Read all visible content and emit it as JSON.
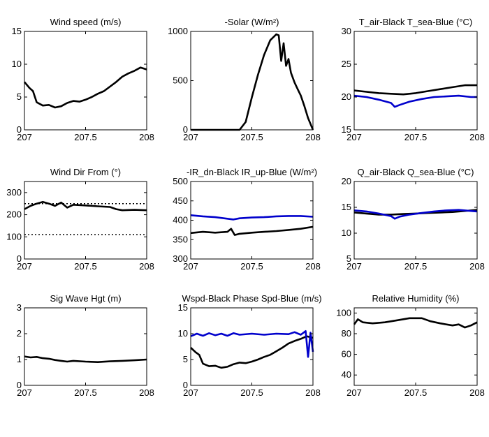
{
  "figure": {
    "x_ticks": [
      "207",
      "207.5",
      "208"
    ]
  },
  "chart_data": [
    {
      "type": "line",
      "title": "Wind speed (m/s)",
      "xlim": [
        207,
        208
      ],
      "ylim": [
        0,
        15
      ],
      "x_tick_labels": [
        "207",
        "207.5",
        "208"
      ],
      "y_tick_labels": [
        "0",
        "5",
        "10",
        "15"
      ],
      "series": [
        {
          "color": "#000000",
          "points": [
            [
              207,
              7.3
            ],
            [
              207.04,
              6.4
            ],
            [
              207.07,
              5.9
            ],
            [
              207.1,
              4.2
            ],
            [
              207.15,
              3.7
            ],
            [
              207.2,
              3.8
            ],
            [
              207.25,
              3.4
            ],
            [
              207.3,
              3.6
            ],
            [
              207.35,
              4.1
            ],
            [
              207.4,
              4.4
            ],
            [
              207.45,
              4.3
            ],
            [
              207.5,
              4.6
            ],
            [
              207.55,
              5.0
            ],
            [
              207.6,
              5.5
            ],
            [
              207.65,
              5.9
            ],
            [
              207.7,
              6.6
            ],
            [
              207.75,
              7.3
            ],
            [
              207.8,
              8.1
            ],
            [
              207.85,
              8.6
            ],
            [
              207.9,
              9.0
            ],
            [
              207.95,
              9.5
            ],
            [
              208,
              9.2
            ]
          ]
        }
      ]
    },
    {
      "type": "line",
      "title": "-Solar (W/m²)",
      "xlim": [
        207,
        208
      ],
      "ylim": [
        0,
        1000
      ],
      "x_tick_labels": [
        "207",
        "207.5",
        "208"
      ],
      "y_tick_labels": [
        "0",
        "500",
        "1000"
      ],
      "series": [
        {
          "color": "#000000",
          "points": [
            [
              207,
              0
            ],
            [
              207.35,
              0
            ],
            [
              207.4,
              0
            ],
            [
              207.45,
              80
            ],
            [
              207.5,
              330
            ],
            [
              207.55,
              560
            ],
            [
              207.6,
              760
            ],
            [
              207.65,
              910
            ],
            [
              207.7,
              970
            ],
            [
              207.72,
              960
            ],
            [
              207.74,
              700
            ],
            [
              207.76,
              880
            ],
            [
              207.78,
              650
            ],
            [
              207.8,
              720
            ],
            [
              207.82,
              580
            ],
            [
              207.85,
              480
            ],
            [
              207.88,
              400
            ],
            [
              207.9,
              350
            ],
            [
              207.93,
              240
            ],
            [
              207.96,
              120
            ],
            [
              208,
              0
            ]
          ]
        }
      ]
    },
    {
      "type": "line",
      "title": "T_air-Black  T_sea-Blue (°C)",
      "xlim": [
        207,
        208
      ],
      "ylim": [
        15,
        30
      ],
      "x_tick_labels": [
        "207",
        "207.5",
        "208"
      ],
      "y_tick_labels": [
        "15",
        "20",
        "25",
        "30"
      ],
      "series": [
        {
          "color": "#000000",
          "points": [
            [
              207,
              21.0
            ],
            [
              207.1,
              20.8
            ],
            [
              207.2,
              20.6
            ],
            [
              207.3,
              20.5
            ],
            [
              207.4,
              20.4
            ],
            [
              207.5,
              20.6
            ],
            [
              207.6,
              20.9
            ],
            [
              207.7,
              21.2
            ],
            [
              207.8,
              21.5
            ],
            [
              207.9,
              21.8
            ],
            [
              208,
              21.8
            ]
          ]
        },
        {
          "color": "#0000cc",
          "points": [
            [
              207,
              20.2
            ],
            [
              207.1,
              20.0
            ],
            [
              207.2,
              19.6
            ],
            [
              207.3,
              19.1
            ],
            [
              207.33,
              18.5
            ],
            [
              207.37,
              18.8
            ],
            [
              207.45,
              19.3
            ],
            [
              207.55,
              19.7
            ],
            [
              207.65,
              20.0
            ],
            [
              207.75,
              20.1
            ],
            [
              207.85,
              20.2
            ],
            [
              207.95,
              20.0
            ],
            [
              208,
              20.0
            ]
          ]
        }
      ]
    },
    {
      "type": "line",
      "title": "Wind Dir From (°)",
      "xlim": [
        207,
        208
      ],
      "ylim": [
        0,
        350
      ],
      "x_tick_labels": [
        "207",
        "207.5",
        "208"
      ],
      "y_tick_labels": [
        "0",
        "100",
        "200",
        "300"
      ],
      "reference_lines": [
        250,
        110
      ],
      "series": [
        {
          "color": "#000000",
          "points": [
            [
              207,
              225
            ],
            [
              207.05,
              240
            ],
            [
              207.1,
              250
            ],
            [
              207.15,
              258
            ],
            [
              207.2,
              250
            ],
            [
              207.25,
              240
            ],
            [
              207.3,
              255
            ],
            [
              207.35,
              232
            ],
            [
              207.4,
              245
            ],
            [
              207.5,
              242
            ],
            [
              207.6,
              238
            ],
            [
              207.7,
              235
            ],
            [
              207.75,
              225
            ],
            [
              207.8,
              220
            ],
            [
              207.9,
              222
            ],
            [
              208,
              220
            ]
          ]
        }
      ]
    },
    {
      "type": "line",
      "title": "-IR_dn-Black  IR_up-Blue (W/m²)",
      "xlim": [
        207,
        208
      ],
      "ylim": [
        300,
        500
      ],
      "x_tick_labels": [
        "207",
        "207.5",
        "208"
      ],
      "y_tick_labels": [
        "300",
        "350",
        "400",
        "450",
        "500"
      ],
      "series": [
        {
          "color": "#000000",
          "points": [
            [
              207,
              367
            ],
            [
              207.1,
              370
            ],
            [
              207.2,
              368
            ],
            [
              207.3,
              370
            ],
            [
              207.33,
              378
            ],
            [
              207.36,
              362
            ],
            [
              207.4,
              365
            ],
            [
              207.5,
              368
            ],
            [
              207.6,
              370
            ],
            [
              207.7,
              372
            ],
            [
              207.8,
              375
            ],
            [
              207.9,
              378
            ],
            [
              208,
              383
            ]
          ]
        },
        {
          "color": "#0000cc",
          "points": [
            [
              207,
              413
            ],
            [
              207.1,
              410
            ],
            [
              207.2,
              408
            ],
            [
              207.3,
              404
            ],
            [
              207.35,
              402
            ],
            [
              207.4,
              405
            ],
            [
              207.5,
              407
            ],
            [
              207.6,
              408
            ],
            [
              207.7,
              410
            ],
            [
              207.8,
              411
            ],
            [
              207.9,
              411
            ],
            [
              208,
              409
            ]
          ]
        }
      ]
    },
    {
      "type": "line",
      "title": "Q_air-Black  Q_sea-Blue (°C)",
      "xlim": [
        207,
        208
      ],
      "ylim": [
        5,
        20
      ],
      "x_tick_labels": [
        "207",
        "207.5",
        "208"
      ],
      "y_tick_labels": [
        "5",
        "10",
        "15",
        "20"
      ],
      "series": [
        {
          "color": "#000000",
          "points": [
            [
              207,
              14.0
            ],
            [
              207.1,
              13.8
            ],
            [
              207.2,
              13.6
            ],
            [
              207.3,
              13.6
            ],
            [
              207.4,
              13.7
            ],
            [
              207.5,
              13.8
            ],
            [
              207.6,
              13.9
            ],
            [
              207.7,
              14.0
            ],
            [
              207.8,
              14.1
            ],
            [
              207.9,
              14.3
            ],
            [
              208,
              14.5
            ]
          ]
        },
        {
          "color": "#0000cc",
          "points": [
            [
              207,
              14.4
            ],
            [
              207.1,
              14.2
            ],
            [
              207.2,
              13.8
            ],
            [
              207.3,
              13.3
            ],
            [
              207.33,
              12.8
            ],
            [
              207.37,
              13.2
            ],
            [
              207.45,
              13.6
            ],
            [
              207.55,
              13.9
            ],
            [
              207.65,
              14.2
            ],
            [
              207.75,
              14.4
            ],
            [
              207.85,
              14.5
            ],
            [
              207.95,
              14.3
            ],
            [
              208,
              14.2
            ]
          ]
        }
      ]
    },
    {
      "type": "line",
      "title": "Sig Wave Hgt (m)",
      "xlim": [
        207,
        208
      ],
      "ylim": [
        0,
        3
      ],
      "x_tick_labels": [
        "207",
        "207.5",
        "208"
      ],
      "y_tick_labels": [
        "0",
        "1",
        "2",
        "3"
      ],
      "series": [
        {
          "color": "#000000",
          "points": [
            [
              207,
              1.12
            ],
            [
              207.05,
              1.08
            ],
            [
              207.1,
              1.1
            ],
            [
              207.15,
              1.05
            ],
            [
              207.2,
              1.03
            ],
            [
              207.25,
              0.98
            ],
            [
              207.3,
              0.95
            ],
            [
              207.35,
              0.92
            ],
            [
              207.4,
              0.95
            ],
            [
              207.5,
              0.92
            ],
            [
              207.6,
              0.9
            ],
            [
              207.7,
              0.93
            ],
            [
              207.8,
              0.95
            ],
            [
              207.9,
              0.97
            ],
            [
              208,
              1.0
            ]
          ]
        }
      ]
    },
    {
      "type": "line",
      "title": "Wspd-Black  Phase Spd-Blue (m/s)",
      "xlim": [
        207,
        208
      ],
      "ylim": [
        0,
        15
      ],
      "x_tick_labels": [
        "207",
        "207.5",
        "208"
      ],
      "y_tick_labels": [
        "0",
        "5",
        "10",
        "15"
      ],
      "series": [
        {
          "color": "#000000",
          "points": [
            [
              207,
              7.3
            ],
            [
              207.04,
              6.4
            ],
            [
              207.07,
              5.9
            ],
            [
              207.1,
              4.2
            ],
            [
              207.15,
              3.7
            ],
            [
              207.2,
              3.8
            ],
            [
              207.25,
              3.4
            ],
            [
              207.3,
              3.6
            ],
            [
              207.35,
              4.1
            ],
            [
              207.4,
              4.4
            ],
            [
              207.45,
              4.3
            ],
            [
              207.5,
              4.6
            ],
            [
              207.55,
              5.0
            ],
            [
              207.6,
              5.5
            ],
            [
              207.65,
              5.9
            ],
            [
              207.7,
              6.6
            ],
            [
              207.75,
              7.3
            ],
            [
              207.8,
              8.1
            ],
            [
              207.85,
              8.6
            ],
            [
              207.9,
              9.0
            ],
            [
              207.95,
              9.5
            ],
            [
              208,
              9.2
            ]
          ]
        },
        {
          "color": "#0000cc",
          "points": [
            [
              207,
              9.5
            ],
            [
              207.05,
              10.0
            ],
            [
              207.1,
              9.6
            ],
            [
              207.15,
              10.1
            ],
            [
              207.2,
              9.7
            ],
            [
              207.25,
              10.0
            ],
            [
              207.3,
              9.6
            ],
            [
              207.35,
              10.1
            ],
            [
              207.4,
              9.8
            ],
            [
              207.5,
              10.0
            ],
            [
              207.6,
              9.8
            ],
            [
              207.7,
              10.0
            ],
            [
              207.8,
              9.9
            ],
            [
              207.85,
              10.3
            ],
            [
              207.9,
              9.8
            ],
            [
              207.94,
              10.5
            ],
            [
              207.96,
              5.5
            ],
            [
              207.98,
              10.2
            ],
            [
              208,
              6.5
            ]
          ]
        }
      ]
    },
    {
      "type": "line",
      "title": "Relative Humidity (%)",
      "xlim": [
        207,
        208
      ],
      "ylim": [
        30,
        105
      ],
      "x_tick_labels": [
        "207",
        "207.5",
        "208"
      ],
      "y_tick_labels": [
        "40",
        "60",
        "80",
        "100"
      ],
      "series": [
        {
          "color": "#000000",
          "points": [
            [
              207,
              89
            ],
            [
              207.03,
              94
            ],
            [
              207.07,
              91
            ],
            [
              207.15,
              90
            ],
            [
              207.25,
              91
            ],
            [
              207.35,
              93
            ],
            [
              207.45,
              95
            ],
            [
              207.55,
              95
            ],
            [
              207.62,
              92
            ],
            [
              207.7,
              90
            ],
            [
              207.8,
              88
            ],
            [
              207.85,
              89
            ],
            [
              207.9,
              86
            ],
            [
              207.95,
              88
            ],
            [
              208,
              91
            ]
          ]
        }
      ]
    }
  ]
}
